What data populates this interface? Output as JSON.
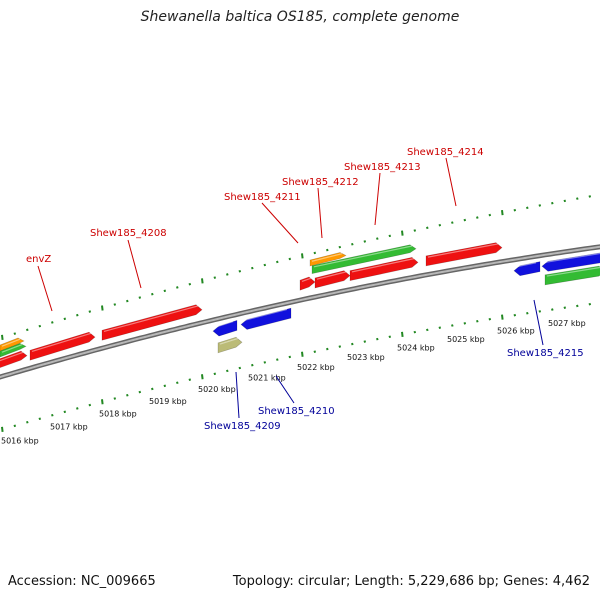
{
  "title": "Shewanella baltica OS185, complete genome",
  "footer": {
    "accession": "Accession: NC_009665",
    "summary": "Topology: circular; Length: 5,229,686 bp; Genes: 4,462"
  },
  "colors": {
    "top_label": "#cc0000",
    "bottom_label": "#000099",
    "red_gene": "#ee1111",
    "blue_gene": "#1111dd",
    "green_gene": "#33bb33",
    "orange_gene": "#ff9900",
    "khaki_gene": "#bbbb77",
    "tick": "#228822",
    "backbone": "#888888"
  },
  "kbp_labels": [
    "5016 kbp",
    "5017 kbp",
    "5018 kbp",
    "5019 kbp",
    "5020 kbp",
    "5021 kbp",
    "5022 kbp",
    "5023 kbp",
    "5024 kbp",
    "5025 kbp",
    "5026 kbp",
    "5027 kbp"
  ],
  "top_gene_labels": [
    "envZ",
    "Shew185_4208",
    "Shew185_4211",
    "Shew185_4212",
    "Shew185_4213",
    "Shew185_4214"
  ],
  "bottom_gene_labels": [
    "Shew185_4209",
    "Shew185_4210",
    "Shew185_4215"
  ]
}
